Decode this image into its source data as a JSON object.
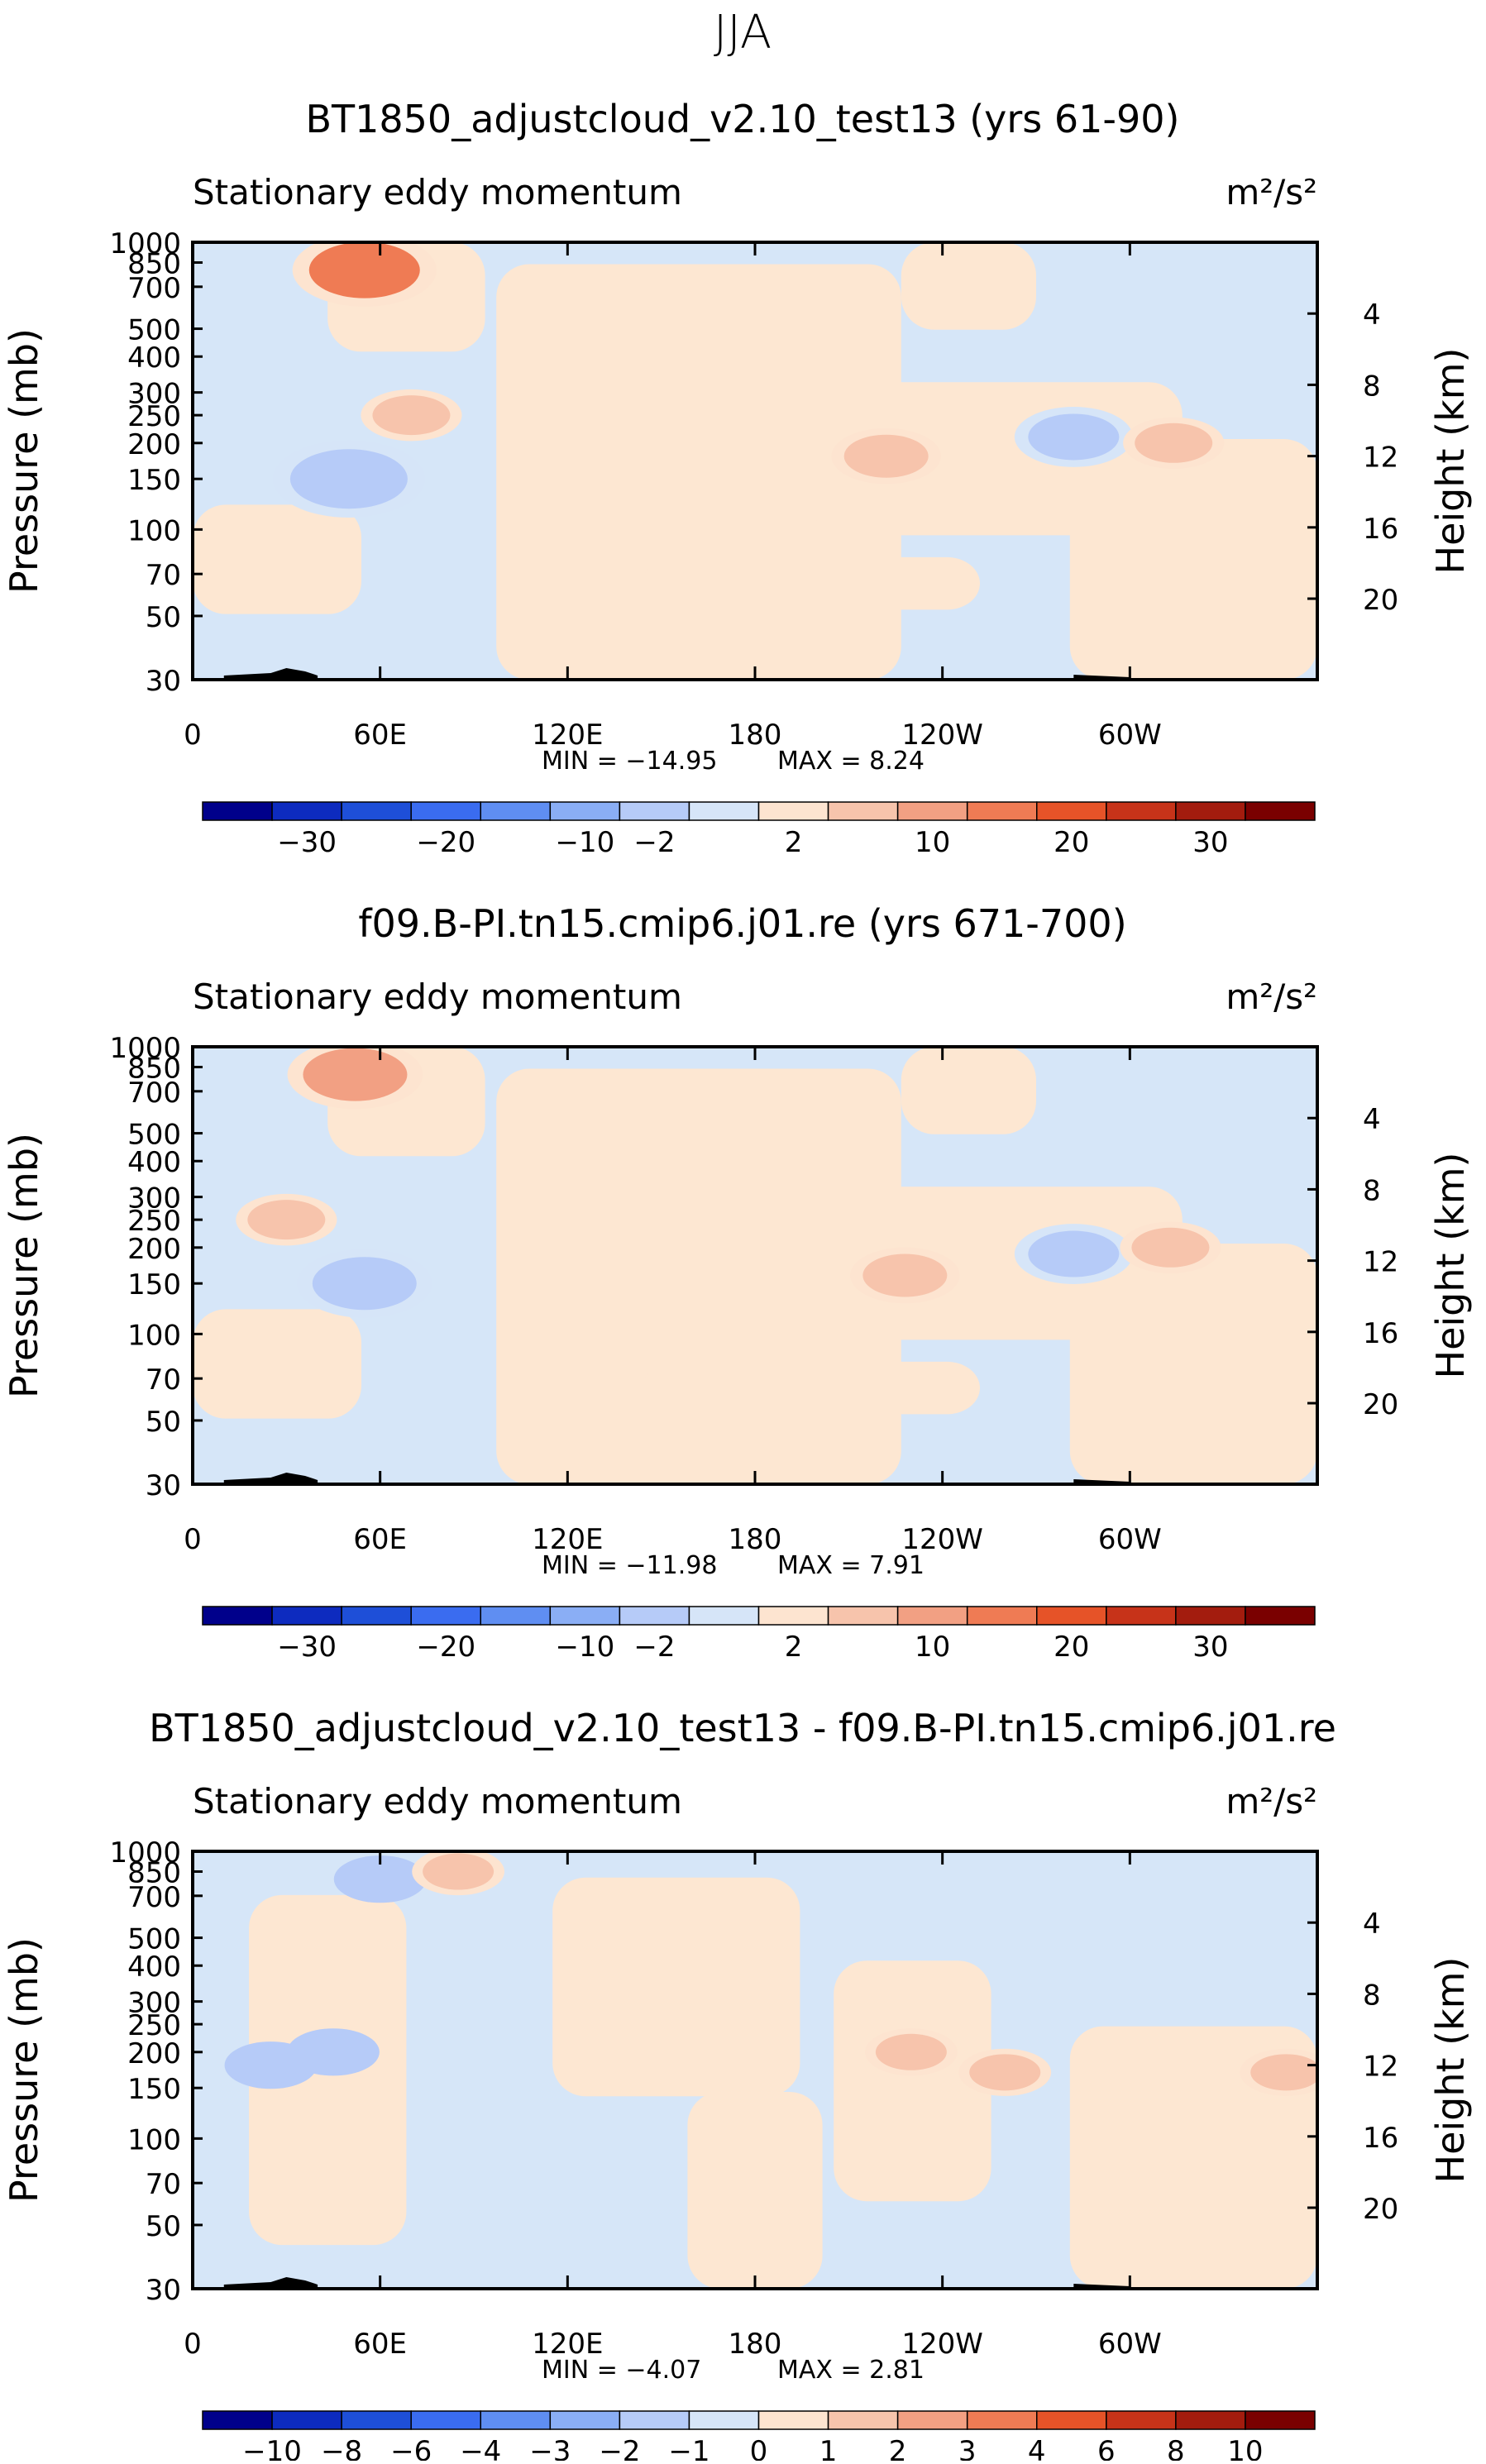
{
  "figure": {
    "season_title": "JJA"
  },
  "chart_data": [
    {
      "type": "heatmap",
      "title": "BT1850_adjustcloud_v2.10_test13 (yrs 61-90)",
      "subtitle_left": "Stationary eddy momentum",
      "units": "m²/s²",
      "xlabel": "",
      "ylabel": "Pressure (mb)",
      "ylabel_right": "Height (km)",
      "x_ticks": [
        "0",
        "60E",
        "120E",
        "180",
        "120W",
        "60W"
      ],
      "y_ticks": [
        "30",
        "50",
        "70",
        "100",
        "150",
        "200",
        "250",
        "300",
        "400",
        "500",
        "700",
        "850",
        "1000"
      ],
      "y_ticks_right": [
        "20",
        "16",
        "12",
        "8",
        "4"
      ],
      "min_label": "MIN = −14.95",
      "max_label": "MAX =    8.24",
      "min": -14.95,
      "max": 8.24,
      "colorbar_labels": [
        "−30",
        "−20",
        "−10",
        "−2",
        "2",
        "10",
        "20",
        "30"
      ],
      "features": [
        {
          "lon": 50,
          "p": 150,
          "value": -9
        },
        {
          "lon": 70,
          "p": 250,
          "value": 3
        },
        {
          "lon": 55,
          "p": 800,
          "value": 8
        },
        {
          "lon": 222,
          "p": 180,
          "value": 4
        },
        {
          "lon": 282,
          "p": 210,
          "value": -5
        },
        {
          "lon": 314,
          "p": 200,
          "value": 3
        }
      ]
    },
    {
      "type": "heatmap",
      "title": "f09.B-PI.tn15.cmip6.j01.re (yrs 671-700)",
      "subtitle_left": "Stationary eddy momentum",
      "units": "m²/s²",
      "xlabel": "",
      "ylabel": "Pressure (mb)",
      "ylabel_right": "Height (km)",
      "x_ticks": [
        "0",
        "60E",
        "120E",
        "180",
        "120W",
        "60W"
      ],
      "y_ticks": [
        "30",
        "50",
        "70",
        "100",
        "150",
        "200",
        "250",
        "300",
        "400",
        "500",
        "700",
        "850",
        "1000"
      ],
      "y_ticks_right": [
        "20",
        "16",
        "12",
        "8",
        "4"
      ],
      "min_label": "MIN = −11.98",
      "max_label": "MAX =    7.91",
      "min": -11.98,
      "max": 7.91,
      "colorbar_labels": [
        "−30",
        "−20",
        "−10",
        "−2",
        "2",
        "10",
        "20",
        "30"
      ],
      "features": [
        {
          "lon": 55,
          "p": 150,
          "value": -7
        },
        {
          "lon": 30,
          "p": 250,
          "value": 3
        },
        {
          "lon": 52,
          "p": 800,
          "value": 7
        },
        {
          "lon": 228,
          "p": 160,
          "value": 4
        },
        {
          "lon": 282,
          "p": 190,
          "value": -5
        },
        {
          "lon": 313,
          "p": 200,
          "value": 3
        }
      ]
    },
    {
      "type": "heatmap",
      "title": "BT1850_adjustcloud_v2.10_test13 - f09.B-PI.tn15.cmip6.j01.re",
      "subtitle_left": "Stationary eddy momentum",
      "units": "m²/s²",
      "xlabel": "",
      "ylabel": "Pressure (mb)",
      "ylabel_right": "Height (km)",
      "x_ticks": [
        "0",
        "60E",
        "120E",
        "180",
        "120W",
        "60W"
      ],
      "y_ticks": [
        "30",
        "50",
        "70",
        "100",
        "150",
        "200",
        "250",
        "300",
        "400",
        "500",
        "700",
        "850",
        "1000"
      ],
      "y_ticks_right": [
        "20",
        "16",
        "12",
        "8",
        "4"
      ],
      "min_label": "MIN =    −4.07",
      "max_label": "MAX =    2.81",
      "min": -4.07,
      "max": 2.81,
      "colorbar_labels": [
        "−10",
        "−8",
        "−6",
        "−4",
        "−3",
        "−2",
        "−1",
        "0",
        "1",
        "2",
        "3",
        "4",
        "6",
        "8",
        "10"
      ],
      "features": [
        {
          "lon": 25,
          "p": 180,
          "value": -2
        },
        {
          "lon": 45,
          "p": 200,
          "value": -2
        },
        {
          "lon": 260,
          "p": 170,
          "value": 2
        },
        {
          "lon": 350,
          "p": 170,
          "value": 2
        },
        {
          "lon": 230,
          "p": 200,
          "value": 2
        },
        {
          "lon": 60,
          "p": 800,
          "value": -2
        },
        {
          "lon": 85,
          "p": 850,
          "value": 2
        }
      ]
    }
  ],
  "colors": {
    "ramp": [
      "#00008b",
      "#0d2bbf",
      "#1e4fd8",
      "#3a6cf0",
      "#5f8ef2",
      "#8aaef5",
      "#b6cbf8",
      "#d6e5f8",
      "#fde4d0",
      "#f7c4ac",
      "#f2a083",
      "#ef7b54",
      "#e65328",
      "#c73319",
      "#a31c0e",
      "#7a0000"
    ],
    "pos_fill": "#fde7d2",
    "neg_fill": "#d6e6f8",
    "orog": "#000000"
  }
}
